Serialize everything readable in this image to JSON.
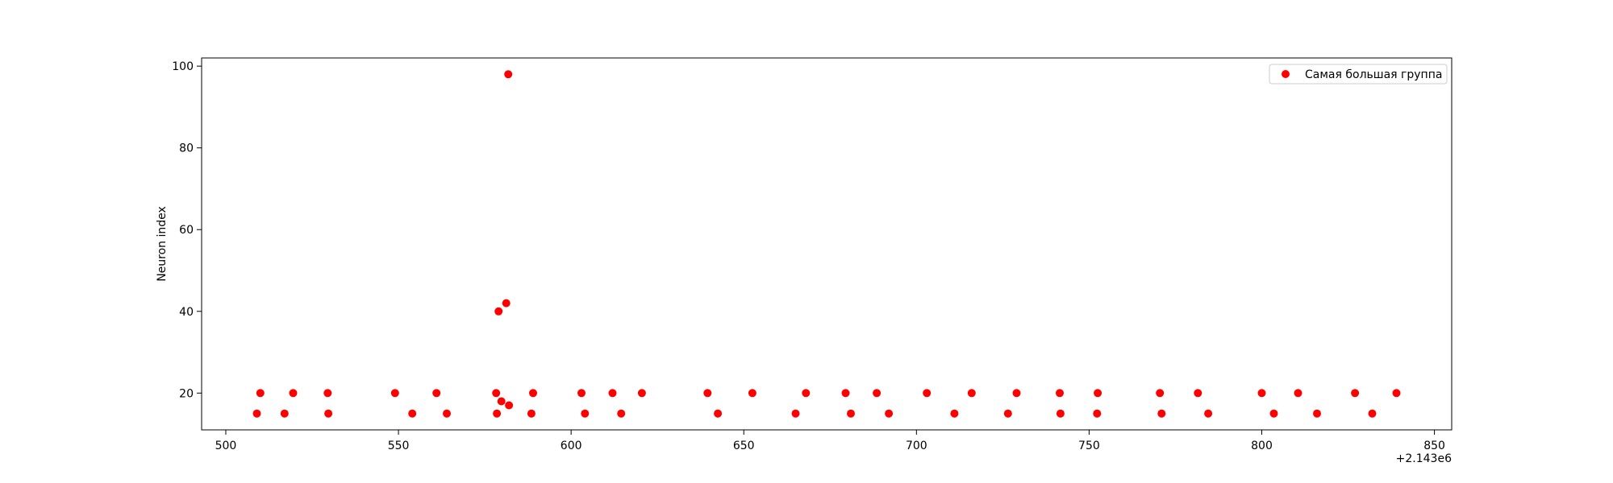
{
  "chart_data": {
    "type": "scatter",
    "title": "",
    "xlabel": "",
    "ylabel": "Neuron index",
    "x_offset_label": "+2.143e6",
    "xlim": [
      493,
      855
    ],
    "ylim": [
      11,
      102
    ],
    "x_ticks": [
      "500",
      "550",
      "600",
      "650",
      "700",
      "750",
      "800",
      "850"
    ],
    "y_ticks": [
      "20",
      "40",
      "60",
      "80",
      "100"
    ],
    "grid": false,
    "legend": {
      "placement": "upper-right"
    },
    "series": [
      {
        "name": "Самая большая группа",
        "color": "#ff0000",
        "points": [
          [
            509,
            15
          ],
          [
            510,
            20
          ],
          [
            517,
            15
          ],
          [
            519.5,
            20
          ],
          [
            529.5,
            20
          ],
          [
            529.7,
            15
          ],
          [
            549,
            20
          ],
          [
            554,
            15
          ],
          [
            561,
            20
          ],
          [
            564,
            15
          ],
          [
            578.3,
            20
          ],
          [
            578.5,
            15
          ],
          [
            579,
            40
          ],
          [
            579.8,
            18
          ],
          [
            581.2,
            42
          ],
          [
            581.8,
            98
          ],
          [
            582,
            17
          ],
          [
            588.5,
            15
          ],
          [
            589,
            20
          ],
          [
            603,
            20
          ],
          [
            604,
            15
          ],
          [
            612,
            20
          ],
          [
            614.5,
            15
          ],
          [
            620.5,
            20
          ],
          [
            639.5,
            20
          ],
          [
            642.5,
            15
          ],
          [
            652.5,
            20
          ],
          [
            665,
            15
          ],
          [
            668,
            20
          ],
          [
            679.5,
            20
          ],
          [
            681,
            15
          ],
          [
            688.5,
            20
          ],
          [
            692,
            15
          ],
          [
            703,
            20
          ],
          [
            711,
            15
          ],
          [
            716,
            20
          ],
          [
            726.5,
            15
          ],
          [
            729,
            20
          ],
          [
            741.5,
            20
          ],
          [
            741.7,
            15
          ],
          [
            752.5,
            20
          ],
          [
            752.3,
            15
          ],
          [
            770.5,
            20
          ],
          [
            771,
            15
          ],
          [
            781.5,
            20
          ],
          [
            784.5,
            15
          ],
          [
            800,
            20
          ],
          [
            803.5,
            15
          ],
          [
            810.5,
            20
          ],
          [
            816,
            15
          ],
          [
            827,
            20
          ],
          [
            832,
            15
          ],
          [
            839,
            20
          ]
        ]
      }
    ]
  }
}
